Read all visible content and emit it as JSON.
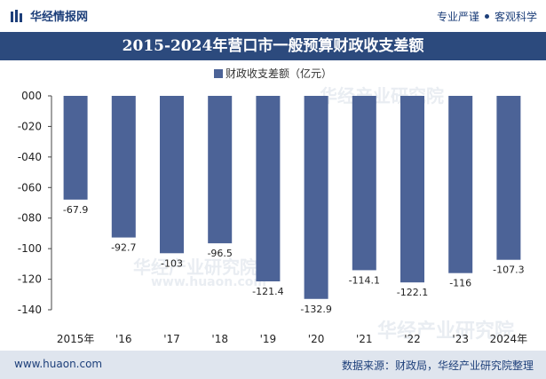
{
  "brand": {
    "name": "华经情报网",
    "icon": "logo-icon"
  },
  "tags": {
    "left": "专业严谨",
    "right": "客观科学"
  },
  "chart_data": {
    "type": "bar",
    "title": "2015-2024年营口市一般预算财政收支差额",
    "legend": [
      "财政收支差额（亿元）"
    ],
    "categories": [
      "2015年",
      "'16",
      "'17",
      "'18",
      "'19",
      "'20",
      "'21",
      "'22",
      "'23",
      "2024年"
    ],
    "series": [
      {
        "name": "财政收支差额（亿元）",
        "values": [
          -67.9,
          -92.7,
          -103,
          -96.5,
          -121.4,
          -132.9,
          -114.1,
          -122.1,
          -116,
          -107.3
        ]
      }
    ],
    "value_labels": [
      "-67.9",
      "-92.7",
      "-103",
      "-96.5",
      "-121.4",
      "-132.9",
      "-114.1",
      "-122.1",
      "-116",
      "-107.3"
    ],
    "ylim": [
      -140,
      0
    ],
    "yticks": [
      "000",
      "-020",
      "-040",
      "-060",
      "-080",
      "-100",
      "-120",
      "-140"
    ],
    "grid": false,
    "legend_position": "top-center",
    "bar_color": "#4c6397"
  },
  "watermarks": [
    "华经产业研究院",
    "www.huaon.com"
  ],
  "footer": {
    "site": "www.huaon.com",
    "source": "数据来源：财政局，华经产业研究院整理"
  }
}
